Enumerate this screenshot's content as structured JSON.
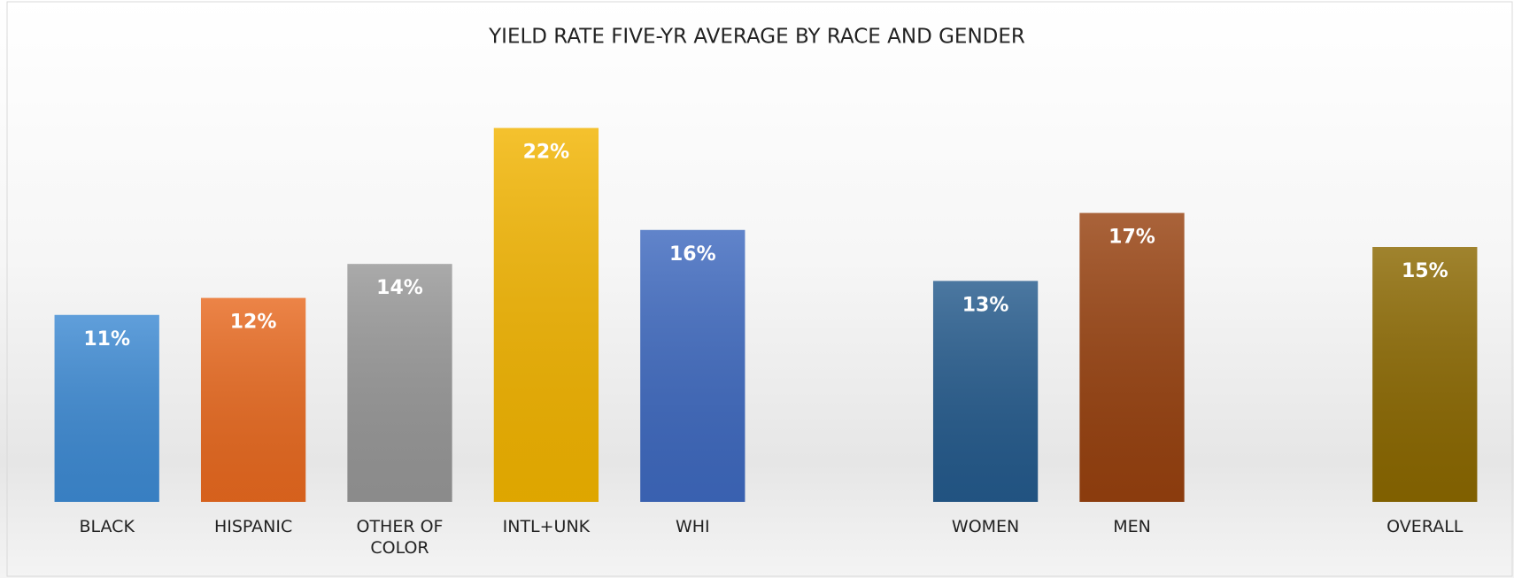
{
  "chart_data": {
    "type": "bar",
    "title": "YIELD RATE FIVE-YR AVERAGE BY RACE AND GENDER",
    "categories": [
      "BLACK",
      "HISPANIC",
      "OTHER OF COLOR",
      "INTL+UNK",
      "WHI",
      null,
      "WOMEN",
      "MEN",
      null,
      "OVERALL"
    ],
    "values": [
      11,
      12,
      14,
      22,
      16,
      null,
      13,
      17,
      null,
      15
    ],
    "value_labels": [
      "11%",
      "12%",
      "14%",
      "22%",
      "16%",
      null,
      "13%",
      "17%",
      null,
      "15%"
    ],
    "colors": [
      "#3d8ad3",
      "#e8691f",
      "#979797",
      "#f2b400",
      "#3e69bf",
      null,
      "#245a8c",
      "#97410f",
      null,
      "#8b6800"
    ],
    "ylim": [
      0,
      25
    ],
    "grid": false,
    "legend": false
  }
}
